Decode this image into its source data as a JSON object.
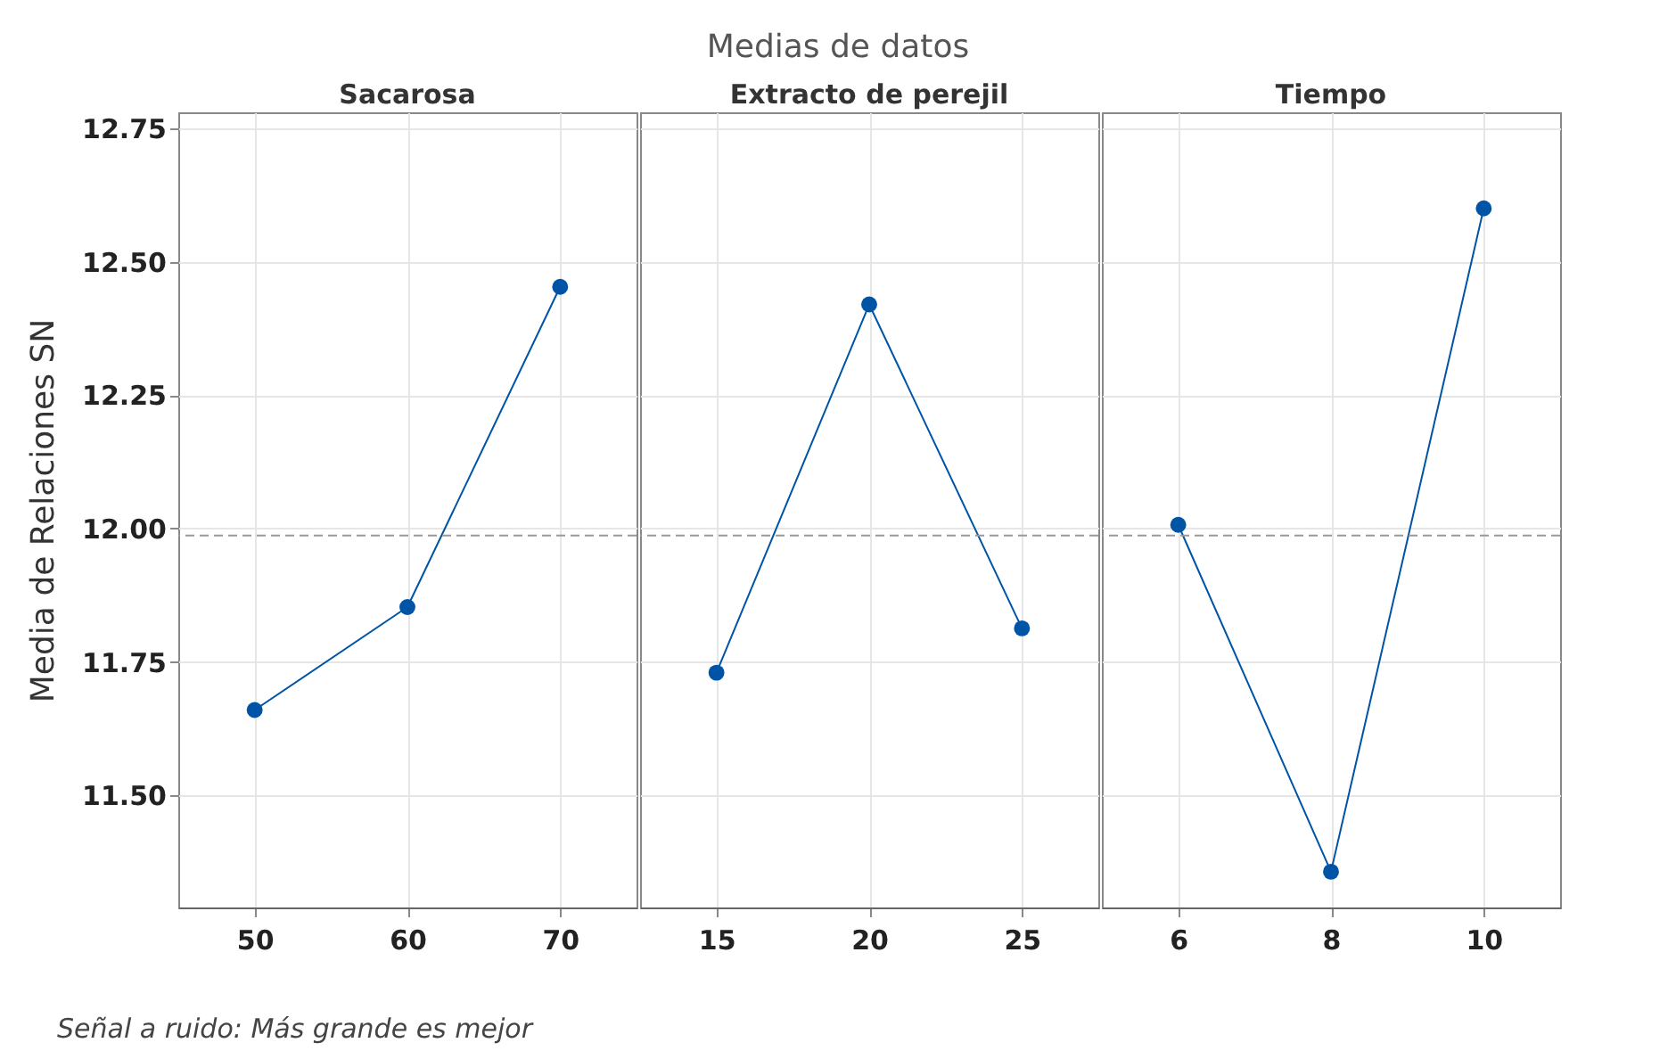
{
  "chart_data": [
    {
      "type": "line",
      "title": "Sacarosa",
      "categories": [
        "50",
        "60",
        "70"
      ],
      "series": [
        {
          "color": "#0054a6",
          "values": [
            11.66,
            11.853,
            12.453
          ]
        }
      ],
      "ylabel": "Media de Relaciones SN",
      "ylim": [
        11.29,
        12.78
      ],
      "yticks": [
        {
          "value": 11.5,
          "label": "11.50"
        },
        11.75,
        {
          "value": 12,
          "label": "12.00"
        },
        12.25,
        {
          "value": 12.5,
          "label": "12.50"
        },
        12.75
      ],
      "grid": true,
      "marker": "circle",
      "line_style": "solid",
      "ref_lines": [
        {
          "axis": "y",
          "value": 11.987,
          "color": "#999999",
          "line_style": "dashed"
        }
      ],
      "annotations": [
        "Medias de datos",
        "Señal a ruido: Más grande es mejor"
      ]
    },
    {
      "type": "line",
      "title": "Extracto de perejil",
      "categories": [
        "15",
        "20",
        "25"
      ],
      "series": [
        {
          "color": "#0054a6",
          "values": [
            11.73,
            12.42,
            11.813
          ]
        }
      ],
      "ylim": [
        11.29,
        12.78
      ],
      "yticks": [
        11.5,
        11.75,
        12,
        12.25,
        12.5,
        12.75
      ],
      "tick_labels": "x",
      "grid": true,
      "marker": "circle",
      "line_style": "solid",
      "ref_lines": [
        {
          "axis": "y",
          "value": 11.987,
          "color": "#999999",
          "line_style": "dashed"
        }
      ]
    },
    {
      "type": "line",
      "title": "Tiempo",
      "categories": [
        "6",
        "8",
        "10"
      ],
      "series": [
        {
          "color": "#0054a6",
          "values": [
            12.007,
            11.357,
            12.6
          ]
        }
      ],
      "ylim": [
        11.29,
        12.78
      ],
      "yticks": [
        11.5,
        11.75,
        12,
        12.25,
        12.5,
        12.75
      ],
      "tick_labels": "x",
      "grid": true,
      "marker": "circle",
      "line_style": "solid",
      "ref_lines": [
        {
          "axis": "y",
          "value": 11.987,
          "color": "#999999",
          "line_style": "dashed"
        }
      ]
    }
  ]
}
